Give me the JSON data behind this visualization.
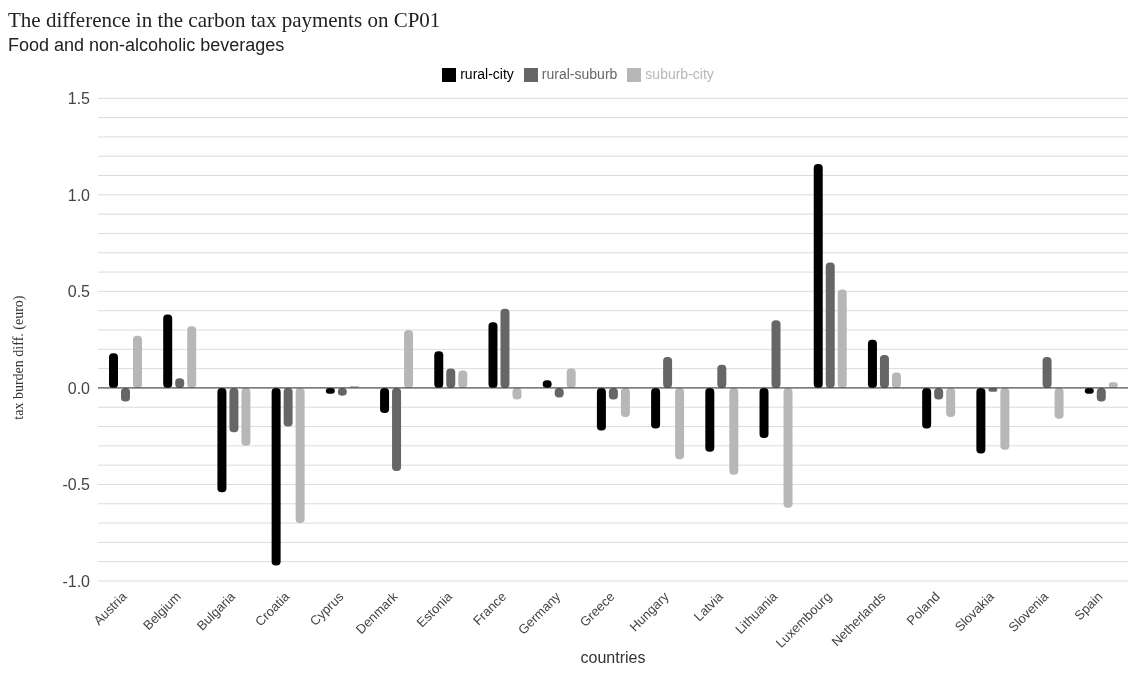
{
  "chart_data": {
    "type": "bar",
    "title": "The difference in the carbon tax payments on CP01",
    "subtitle": "Food and non-alcoholic beverages",
    "xlabel": "countries",
    "ylabel": "tax burden diff. (euro)",
    "categories": [
      "Austria",
      "Belgium",
      "Bulgaria",
      "Croatia",
      "Cyprus",
      "Denmark",
      "Estonia",
      "France",
      "Germany",
      "Greece",
      "Hungary",
      "Latvia",
      "Lithuania",
      "Luxembourg",
      "Netherlands",
      "Poland",
      "Slovakia",
      "Slovenia",
      "Spain"
    ],
    "series": [
      {
        "name": "rural-city",
        "color": "#000000",
        "values": [
          0.18,
          0.38,
          -0.54,
          -0.92,
          -0.03,
          -0.13,
          0.19,
          0.34,
          0.04,
          -0.22,
          -0.21,
          -0.33,
          -0.26,
          1.16,
          0.25,
          -0.21,
          -0.34,
          0,
          -0.03
        ]
      },
      {
        "name": "rural-suburb",
        "color": "#666666",
        "values": [
          -0.07,
          0.05,
          -0.23,
          -0.2,
          -0.04,
          -0.43,
          0.1,
          0.41,
          -0.05,
          -0.06,
          0.16,
          0.12,
          0.35,
          0.65,
          0.17,
          -0.06,
          -0.02,
          0.16,
          -0.07
        ]
      },
      {
        "name": "suburb-city",
        "color": "#b7b7b7",
        "values": [
          0.27,
          0.32,
          -0.3,
          -0.7,
          0.01,
          0.3,
          0.09,
          -0.06,
          0.1,
          -0.15,
          -0.37,
          -0.45,
          -0.62,
          0.51,
          0.08,
          -0.15,
          -0.32,
          -0.16,
          0.03
        ]
      }
    ],
    "ylim": [
      -1,
      1.5
    ],
    "yticks": [
      {
        "value": -1,
        "label": "-1.0"
      },
      {
        "value": -0.9,
        "label": null
      },
      {
        "value": -0.8,
        "label": null
      },
      {
        "value": -0.7,
        "label": null
      },
      {
        "value": -0.6,
        "label": null
      },
      {
        "value": -0.5,
        "label": "-0.5"
      },
      {
        "value": -0.4,
        "label": null
      },
      {
        "value": -0.3,
        "label": null
      },
      {
        "value": -0.2,
        "label": null
      },
      {
        "value": -0.1,
        "label": null
      },
      {
        "value": 0,
        "label": "0.0"
      },
      {
        "value": 0.1,
        "label": null
      },
      {
        "value": 0.2,
        "label": null
      },
      {
        "value": 0.3,
        "label": null
      },
      {
        "value": 0.4,
        "label": null
      },
      {
        "value": 0.5,
        "label": "0.5"
      },
      {
        "value": 0.6,
        "label": null
      },
      {
        "value": 0.7,
        "label": null
      },
      {
        "value": 0.8,
        "label": null
      },
      {
        "value": 0.9,
        "label": null
      },
      {
        "value": 1,
        "label": "1.0"
      },
      {
        "value": 1.1,
        "label": null
      },
      {
        "value": 1.2,
        "label": null
      },
      {
        "value": 1.3,
        "label": null
      },
      {
        "value": 1.4,
        "label": null
      },
      {
        "value": 1.5,
        "label": "1.5"
      }
    ],
    "grid": "y",
    "legend": "top"
  }
}
